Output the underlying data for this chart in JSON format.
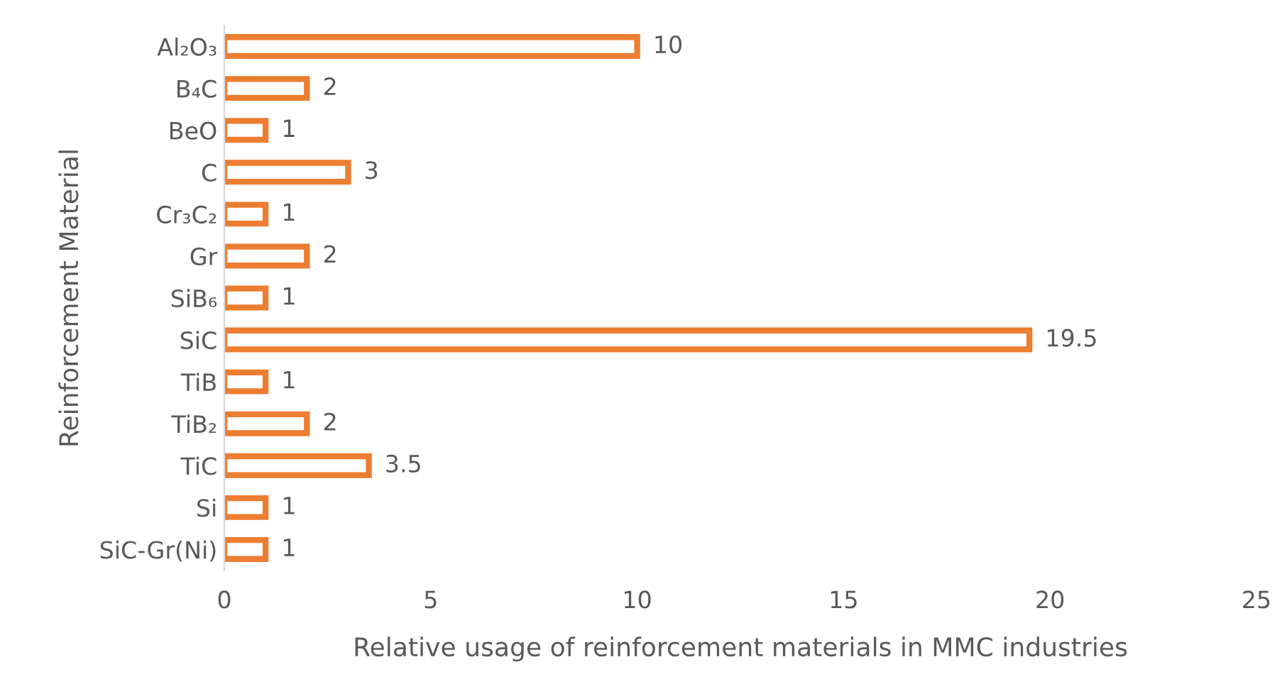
{
  "chart_data": {
    "type": "bar",
    "orientation": "horizontal",
    "xlabel": "Relative usage of reinforcement materials in MMC industries",
    "ylabel": "Reinforcement Material",
    "categories": [
      "Al₂O₃",
      "B₄C",
      "BeO",
      "C",
      "Cr₃C₂",
      "Gr",
      "SiB₆",
      "SiC",
      "TiB",
      "TiB₂",
      "TiC",
      "Si",
      "SiC-Gr(Ni)"
    ],
    "values": [
      10,
      2,
      1,
      3,
      1,
      2,
      1,
      19.5,
      1,
      2,
      3.5,
      1,
      1
    ],
    "color": "#ed7d31",
    "xlim": [
      0,
      25
    ],
    "xticks": [
      0,
      5,
      10,
      15,
      20,
      25
    ],
    "data_labels": true,
    "grid": false,
    "legend": false
  }
}
